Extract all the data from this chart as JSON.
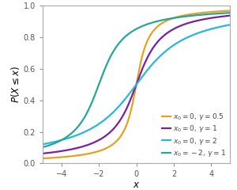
{
  "title": "",
  "xlabel": "$x$",
  "ylabel": "$P(X \\leq x)$",
  "xlim": [
    -5,
    5
  ],
  "ylim": [
    0.0,
    1.0
  ],
  "xticks": [
    -4,
    -2,
    0,
    2,
    4
  ],
  "yticks": [
    0.0,
    0.2,
    0.4,
    0.6,
    0.8,
    1.0
  ],
  "curves": [
    {
      "x0": 0,
      "gamma": 0.5,
      "color": "#E8A020",
      "label": "$x_0 = 0,\\, \\gamma = 0.5$"
    },
    {
      "x0": 0,
      "gamma": 1,
      "color": "#7B1FA2",
      "label": "$x_0 = 0,\\, \\gamma = 1$"
    },
    {
      "x0": 0,
      "gamma": 2,
      "color": "#29B6D8",
      "label": "$x_0 = 0,\\, \\gamma = 2$"
    },
    {
      "x0": -2,
      "gamma": 1,
      "color": "#26A69A",
      "label": "$x_0 = -2,\\, \\gamma = 1$"
    }
  ],
  "background_color": "#ffffff",
  "legend_fontsize": 6.5,
  "axis_label_fontsize": 8.5,
  "tick_fontsize": 7,
  "linewidth": 1.6
}
